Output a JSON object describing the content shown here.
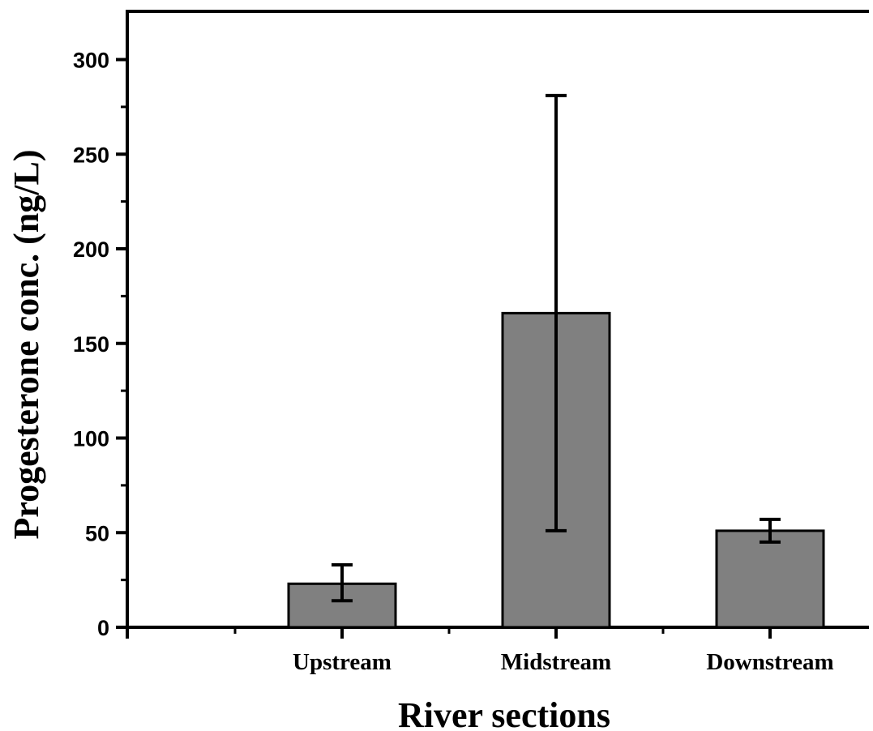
{
  "chart_data": {
    "type": "bar",
    "title": "",
    "xlabel": "River sections",
    "ylabel": "Progesterone conc. (ng/L)",
    "categories": [
      "Upstream",
      "Midstream",
      "Downstream"
    ],
    "values": [
      23,
      166,
      51
    ],
    "error_upper": [
      33,
      281,
      57
    ],
    "error_lower": [
      14,
      51,
      45
    ],
    "ylim": [
      0,
      325
    ],
    "yticks": [
      0,
      50,
      100,
      150,
      200,
      250,
      300
    ],
    "grid": false,
    "legend": "none",
    "bar_color": "#808080",
    "edge_color": "#000000"
  }
}
